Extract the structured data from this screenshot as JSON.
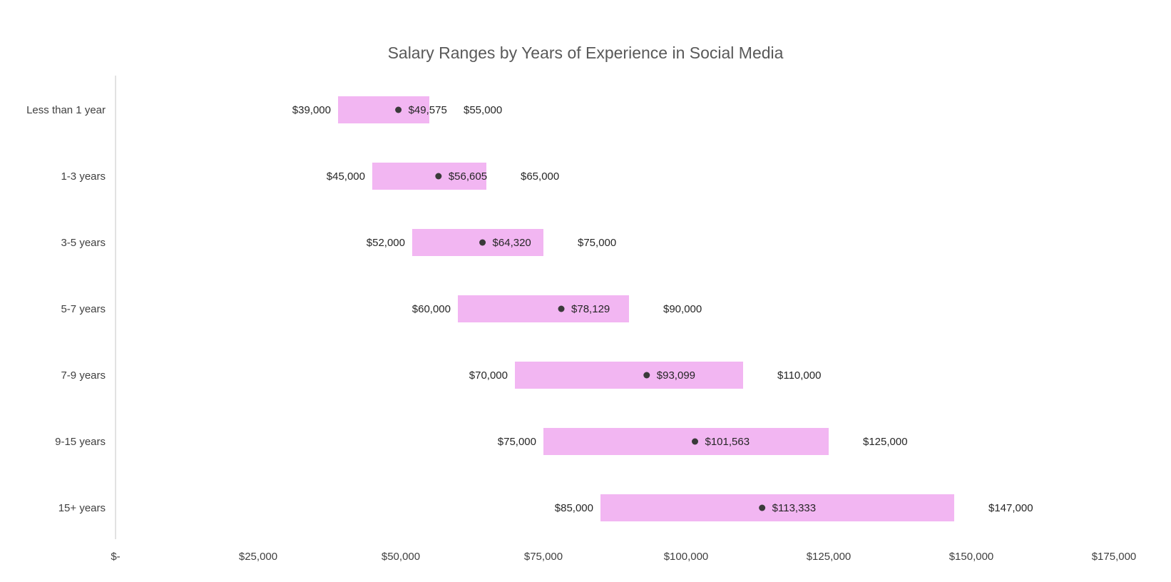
{
  "chart_data": {
    "type": "bar",
    "title": "Salary Ranges by Years of Experience in Social Media",
    "orientation": "horizontal",
    "categories": [
      "Less than 1 year",
      "1-3 years",
      "3-5 years",
      "5-7 years",
      "7-9 years",
      "9-15 years",
      "15+ years"
    ],
    "series": [
      {
        "values": [
          39000,
          45000,
          52000,
          60000,
          70000,
          75000,
          85000
        ]
      },
      {
        "values": [
          49575,
          56605,
          64320,
          78129,
          93099,
          101563,
          113333
        ]
      },
      {
        "values": [
          55000,
          65000,
          75000,
          90000,
          110000,
          125000,
          147000
        ]
      }
    ],
    "low_labels": [
      "$39,000",
      "$45,000",
      "$52,000",
      "$60,000",
      "$70,000",
      "$75,000",
      "$85,000"
    ],
    "avg_labels": [
      "$49,575",
      "$56,605",
      "$64,320",
      "$78,129",
      "$93,099",
      "$101,563",
      "$113,333"
    ],
    "high_labels": [
      "$55,000",
      "$65,000",
      "$75,000",
      "$90,000",
      "$110,000",
      "$125,000",
      "$147,000"
    ],
    "xlim": [
      0,
      175000
    ],
    "x_ticks": [
      0,
      25000,
      50000,
      75000,
      100000,
      125000,
      150000,
      175000
    ],
    "x_tick_labels": [
      "$-",
      "$25,000",
      "$50,000",
      "$75,000",
      "$100,000",
      "$125,000",
      "$150,000",
      "$175,000"
    ],
    "grid": false,
    "legend": "none",
    "colors": {
      "range_bar": "#f2b6f2",
      "marker": "#3a3a3a",
      "axis": "#d9d9d9"
    }
  }
}
